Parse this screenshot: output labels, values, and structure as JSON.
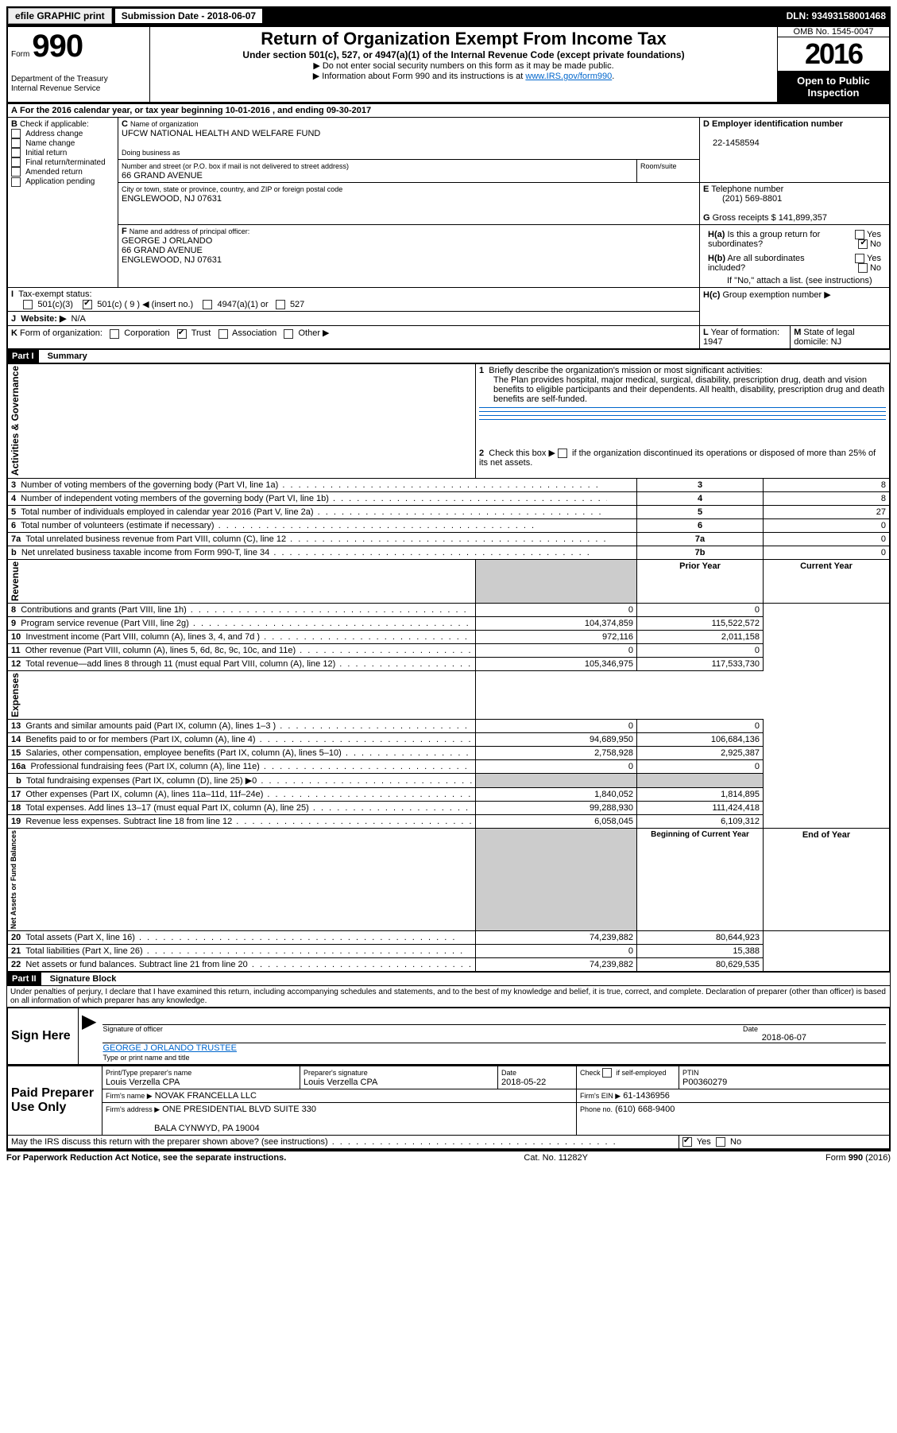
{
  "topbar": {
    "efile": "efile GRAPHIC print",
    "subdate_label": "Submission Date - 2018-06-07",
    "dln": "DLN: 93493158001468"
  },
  "header": {
    "form_label": "Form",
    "form_num": "990",
    "dept": "Department of the Treasury",
    "irs": "Internal Revenue Service",
    "title": "Return of Organization Exempt From Income Tax",
    "subtitle": "Under section 501(c), 527, or 4947(a)(1) of the Internal Revenue Code (except private foundations)",
    "note1": "Do not enter social security numbers on this form as it may be made public.",
    "note2_pre": "Information about Form 990 and its instructions is at ",
    "note2_link": "www.IRS.gov/form990",
    "note2_post": ".",
    "omb": "OMB No. 1545-0047",
    "year": "2016",
    "open": "Open to Public Inspection"
  },
  "A": {
    "text_pre": "For the 2016 calendar year, or tax year beginning ",
    "begin": "10-01-2016",
    "mid": " , and ending ",
    "end": "09-30-2017"
  },
  "B": {
    "label": "Check if applicable:",
    "items": [
      "Address change",
      "Name change",
      "Initial return",
      "Final return/terminated",
      "Amended return",
      "Application pending"
    ]
  },
  "C": {
    "name_label": "Name of organization",
    "name": "UFCW NATIONAL HEALTH AND WELFARE FUND",
    "dba_label": "Doing business as",
    "street_label": "Number and street (or P.O. box if mail is not delivered to street address)",
    "room_label": "Room/suite",
    "street": "66 GRAND AVENUE",
    "city_label": "City or town, state or province, country, and ZIP or foreign postal code",
    "city": "ENGLEWOOD, NJ  07631"
  },
  "D": {
    "label": "Employer identification number",
    "value": "22-1458594"
  },
  "E": {
    "label": "Telephone number",
    "value": "(201) 569-8801"
  },
  "G": {
    "label": "Gross receipts $",
    "value": "141,899,357"
  },
  "F": {
    "label": "Name and address of principal officer:",
    "name": "GEORGE J ORLANDO",
    "addr1": "66 GRAND AVENUE",
    "addr2": "ENGLEWOOD, NJ  07631"
  },
  "H": {
    "a": "Is this a group return for subordinates?",
    "b": "Are all subordinates included?",
    "note": "If \"No,\" attach a list. (see instructions)",
    "c": "Group exemption number ▶",
    "yes": "Yes",
    "no": "No"
  },
  "I": {
    "label": "Tax-exempt status:",
    "opts": [
      "501(c)(3)",
      "501(c) ( 9 ) ◀ (insert no.)",
      "4947(a)(1) or",
      "527"
    ]
  },
  "J": {
    "label": "Website: ▶",
    "value": "N/A"
  },
  "K": {
    "label": "Form of organization:",
    "opts": [
      "Corporation",
      "Trust",
      "Association",
      "Other ▶"
    ]
  },
  "L": {
    "label": "Year of formation:",
    "value": "1947"
  },
  "M": {
    "label": "State of legal domicile:",
    "value": "NJ"
  },
  "part1": {
    "hdr": "Part I",
    "title": "Summary",
    "q1": "Briefly describe the organization's mission or most significant activities:",
    "q1_text": "The Plan provides hospital, major medical, surgical, disability, prescription drug, death and vision benefits to eligible participants and their dependents. All health, disability, prescription drug and death benefits are self-funded.",
    "q2_pre": "Check this box ▶",
    "q2_post": "if the organization discontinued its operations or disposed of more than 25% of its net assets.",
    "side_ag": "Activities & Governance",
    "side_rev": "Revenue",
    "side_exp": "Expenses",
    "side_net": "Net Assets or Fund Balances",
    "col_prior": "Prior Year",
    "col_current": "Current Year",
    "col_begin": "Beginning of Current Year",
    "col_end": "End of Year",
    "rows_top": [
      {
        "n": "3",
        "t": "Number of voting members of the governing body (Part VI, line 1a)",
        "r": "3",
        "v": "8"
      },
      {
        "n": "4",
        "t": "Number of independent voting members of the governing body (Part VI, line 1b)",
        "r": "4",
        "v": "8"
      },
      {
        "n": "5",
        "t": "Total number of individuals employed in calendar year 2016 (Part V, line 2a)",
        "r": "5",
        "v": "27"
      },
      {
        "n": "6",
        "t": "Total number of volunteers (estimate if necessary)",
        "r": "6",
        "v": "0"
      },
      {
        "n": "7a",
        "t": "Total unrelated business revenue from Part VIII, column (C), line 12",
        "r": "7a",
        "v": "0"
      },
      {
        "n": "b",
        "t": "Net unrelated business taxable income from Form 990-T, line 34",
        "r": "7b",
        "v": "0"
      }
    ],
    "rows_rev": [
      {
        "n": "8",
        "t": "Contributions and grants (Part VIII, line 1h)",
        "p": "0",
        "c": "0"
      },
      {
        "n": "9",
        "t": "Program service revenue (Part VIII, line 2g)",
        "p": "104,374,859",
        "c": "115,522,572"
      },
      {
        "n": "10",
        "t": "Investment income (Part VIII, column (A), lines 3, 4, and 7d )",
        "p": "972,116",
        "c": "2,011,158"
      },
      {
        "n": "11",
        "t": "Other revenue (Part VIII, column (A), lines 5, 6d, 8c, 9c, 10c, and 11e)",
        "p": "0",
        "c": "0"
      },
      {
        "n": "12",
        "t": "Total revenue—add lines 8 through 11 (must equal Part VIII, column (A), line 12)",
        "p": "105,346,975",
        "c": "117,533,730"
      }
    ],
    "rows_exp": [
      {
        "n": "13",
        "t": "Grants and similar amounts paid (Part IX, column (A), lines 1–3 )",
        "p": "0",
        "c": "0"
      },
      {
        "n": "14",
        "t": "Benefits paid to or for members (Part IX, column (A), line 4)",
        "p": "94,689,950",
        "c": "106,684,136"
      },
      {
        "n": "15",
        "t": "Salaries, other compensation, employee benefits (Part IX, column (A), lines 5–10)",
        "p": "2,758,928",
        "c": "2,925,387"
      },
      {
        "n": "16a",
        "t": "Professional fundraising fees (Part IX, column (A), line 11e)",
        "p": "0",
        "c": "0"
      },
      {
        "n": "b",
        "t": "Total fundraising expenses (Part IX, column (D), line 25) ▶0",
        "p": "grey",
        "c": "grey"
      },
      {
        "n": "17",
        "t": "Other expenses (Part IX, column (A), lines 11a–11d, 11f–24e)",
        "p": "1,840,052",
        "c": "1,814,895"
      },
      {
        "n": "18",
        "t": "Total expenses. Add lines 13–17 (must equal Part IX, column (A), line 25)",
        "p": "99,288,930",
        "c": "111,424,418"
      },
      {
        "n": "19",
        "t": "Revenue less expenses. Subtract line 18 from line 12",
        "p": "6,058,045",
        "c": "6,109,312"
      }
    ],
    "rows_net": [
      {
        "n": "20",
        "t": "Total assets (Part X, line 16)",
        "p": "74,239,882",
        "c": "80,644,923"
      },
      {
        "n": "21",
        "t": "Total liabilities (Part X, line 26)",
        "p": "0",
        "c": "15,388"
      },
      {
        "n": "22",
        "t": "Net assets or fund balances. Subtract line 21 from line 20",
        "p": "74,239,882",
        "c": "80,629,535"
      }
    ]
  },
  "part2": {
    "hdr": "Part II",
    "title": "Signature Block",
    "decl": "Under penalties of perjury, I declare that I have examined this return, including accompanying schedules and statements, and to the best of my knowledge and belief, it is true, correct, and complete. Declaration of preparer (other than officer) is based on all information of which preparer has any knowledge.",
    "sign_here": "Sign Here",
    "sig_officer": "Signature of officer",
    "sig_date": "Date",
    "sig_date_val": "2018-06-07",
    "sig_name": "GEORGE J ORLANDO TRUSTEE",
    "sig_name_label": "Type or print name and title",
    "paid": "Paid Preparer Use Only",
    "prep_name_label": "Print/Type preparer's name",
    "prep_name": "Louis Verzella CPA",
    "prep_sig_label": "Preparer's signature",
    "prep_sig": "Louis Verzella CPA",
    "prep_date_label": "Date",
    "prep_date": "2018-05-22",
    "prep_check": "Check         if self-employed",
    "ptin_label": "PTIN",
    "ptin": "P00360279",
    "firm_name_label": "Firm's name      ▶",
    "firm_name": "NOVAK FRANCELLA LLC",
    "firm_ein_label": "Firm's EIN ▶",
    "firm_ein": "61-1436956",
    "firm_addr_label": "Firm's address ▶",
    "firm_addr1": "ONE PRESIDENTIAL BLVD SUITE 330",
    "firm_addr2": "BALA CYNWYD, PA  19004",
    "firm_phone_label": "Phone no.",
    "firm_phone": "(610) 668-9400",
    "discuss": "May the IRS discuss this return with the preparer shown above? (see instructions)"
  },
  "footer": {
    "left": "For Paperwork Reduction Act Notice, see the separate instructions.",
    "mid": "Cat. No. 11282Y",
    "right_pre": "Form ",
    "right_bold": "990",
    "right_post": " (2016)"
  }
}
